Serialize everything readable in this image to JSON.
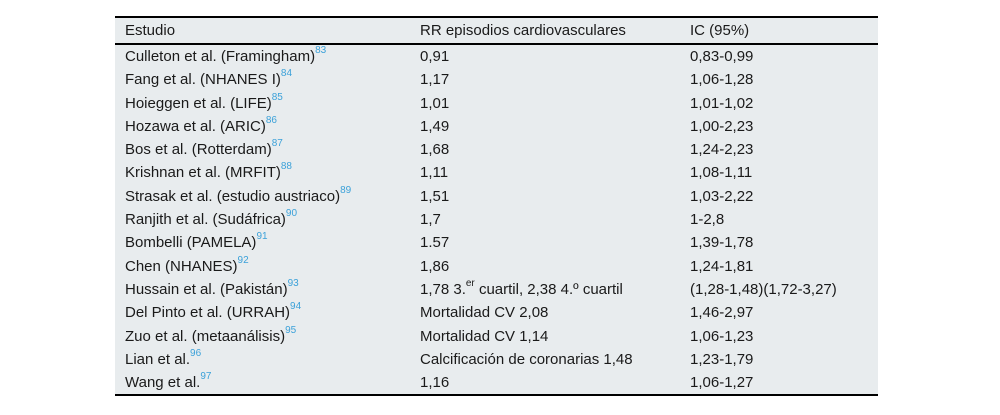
{
  "table": {
    "columns": [
      "Estudio",
      "RR episodios cardiovasculares",
      "IC (95%)"
    ],
    "rows": [
      {
        "study": "Culleton et al. (Framingham)",
        "ref": "83",
        "rr": "0,91",
        "ic": "0,83-0,99"
      },
      {
        "study": "Fang et al. (NHANES I)",
        "ref": "84",
        "rr": "1,17",
        "ic": "1,06-1,28"
      },
      {
        "study": "Hoieggen et al. (LIFE)",
        "ref": "85",
        "rr": "1,01",
        "ic": "1,01-1,02"
      },
      {
        "study": "Hozawa et al. (ARIC)",
        "ref": "86",
        "rr": "1,49",
        "ic": "1,00-2,23"
      },
      {
        "study": "Bos et al. (Rotterdam)",
        "ref": "87",
        "rr": "1,68",
        "ic": "1,24-2,23"
      },
      {
        "study": "Krishnan et al. (MRFIT)",
        "ref": "88",
        "rr": "1,11",
        "ic": "1,08-1,11"
      },
      {
        "study": "Strasak et al. (estudio austriaco)",
        "ref": "89",
        "rr": "1,51",
        "ic": "1,03-2,22"
      },
      {
        "study": "Ranjith et al. (Sudáfrica)",
        "ref": "90",
        "rr": "1,7",
        "ic": "1-2,8"
      },
      {
        "study": "Bombelli (PAMELA)",
        "ref": "91",
        "rr": "1.57",
        "ic": "1,39-1,78"
      },
      {
        "study": "Chen (NHANES)",
        "ref": "92",
        "rr": "1,86",
        "ic": "1,24-1,81"
      },
      {
        "study": "Hussain et al. (Pakistán)",
        "ref": "93",
        "rr": "1,78 3.{er} cuartil, 2,38 4.º cuartil",
        "ic": "(1,28-1,48)(1,72-3,27)"
      },
      {
        "study": "Del Pinto et al. (URRAH)",
        "ref": "94",
        "rr": "Mortalidad CV 2,08",
        "ic": "1,46-2,97"
      },
      {
        "study": "Zuo et al. (metaanálisis)",
        "ref": "95",
        "rr": "Mortalidad CV 1,14",
        "ic": "1,06-1,23"
      },
      {
        "study": "Lian et al.",
        "ref": "96",
        "rr": "Calcificación de coronarias 1,48",
        "ic": "1,23-1,79"
      },
      {
        "study": "Wang et al.",
        "ref": "97",
        "rr": "1,16",
        "ic": "1,06-1,27"
      }
    ]
  },
  "colors": {
    "table_bg": "#e8ecee",
    "text": "#1a1a1a",
    "ref_blue": "#3ba1d9",
    "rule": "#000000"
  }
}
